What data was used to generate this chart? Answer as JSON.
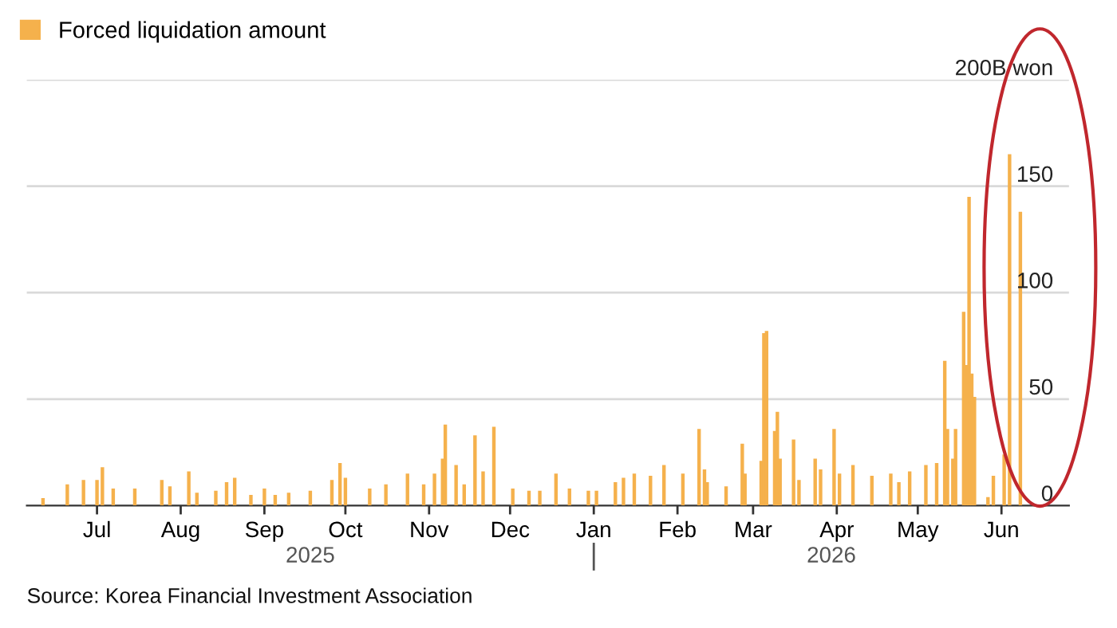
{
  "chart_data": {
    "type": "bar",
    "x": [
      "2025-06-11",
      "2025-06-20",
      "2025-06-26",
      "2025-07-01",
      "2025-07-03",
      "2025-07-07",
      "2025-07-15",
      "2025-07-25",
      "2025-07-28",
      "2025-08-04",
      "2025-08-07",
      "2025-08-14",
      "2025-08-18",
      "2025-08-21",
      "2025-08-27",
      "2025-09-01",
      "2025-09-05",
      "2025-09-10",
      "2025-09-18",
      "2025-09-26",
      "2025-09-29",
      "2025-10-01",
      "2025-10-10",
      "2025-10-16",
      "2025-10-24",
      "2025-10-30",
      "2025-11-03",
      "2025-11-06",
      "2025-11-07",
      "2025-11-11",
      "2025-11-14",
      "2025-11-18",
      "2025-11-21",
      "2025-11-25",
      "2025-12-02",
      "2025-12-08",
      "2025-12-12",
      "2025-12-18",
      "2025-12-23",
      "2025-12-30",
      "2026-01-02",
      "2026-01-09",
      "2026-01-12",
      "2026-01-16",
      "2026-01-22",
      "2026-01-27",
      "2026-02-03",
      "2026-02-09",
      "2026-02-11",
      "2026-02-12",
      "2026-02-19",
      "2026-02-25",
      "2026-02-26",
      "2026-03-04",
      "2026-03-05",
      "2026-03-06",
      "2026-03-09",
      "2026-03-10",
      "2026-03-11",
      "2026-03-16",
      "2026-03-18",
      "2026-03-24",
      "2026-03-26",
      "2026-03-31",
      "2026-04-02",
      "2026-04-07",
      "2026-04-14",
      "2026-04-21",
      "2026-04-24",
      "2026-04-28",
      "2026-05-04",
      "2026-05-08",
      "2026-05-11",
      "2026-05-12",
      "2026-05-14",
      "2026-05-15",
      "2026-05-18",
      "2026-05-19",
      "2026-05-20",
      "2026-05-21",
      "2026-05-22",
      "2026-05-27",
      "2026-05-29",
      "2026-06-02",
      "2026-06-04",
      "2026-06-08"
    ],
    "series": [
      {
        "name": "Forced liquidation amount",
        "color": "#f5b14c",
        "values": [
          3.5,
          10,
          12,
          12,
          18,
          8,
          8,
          12,
          9,
          16,
          6,
          7,
          11,
          13,
          5,
          8,
          5,
          6,
          7,
          12,
          20,
          13,
          8,
          10,
          15,
          10,
          15,
          22,
          38,
          19,
          10,
          33,
          16,
          37,
          8,
          7,
          7,
          15,
          8,
          7,
          7,
          11,
          13,
          15,
          14,
          19,
          15,
          36,
          17,
          11,
          9,
          29,
          15,
          21,
          81,
          82,
          35,
          44,
          22,
          31,
          12,
          22,
          17,
          36,
          15,
          19,
          14,
          15,
          11,
          16,
          19,
          20,
          68,
          36,
          22,
          36,
          91,
          66,
          145,
          62,
          51,
          4,
          14,
          24,
          165,
          138
        ]
      }
    ],
    "xlim": [
      "2025-06-05",
      "2026-06-26"
    ],
    "xticks": [
      {
        "value": "2025-07-01",
        "label": "Jul"
      },
      {
        "value": "2025-08-01",
        "label": "Aug"
      },
      {
        "value": "2025-09-01",
        "label": "Sep"
      },
      {
        "value": "2025-10-01",
        "label": "Oct"
      },
      {
        "value": "2025-11-01",
        "label": "Nov"
      },
      {
        "value": "2025-12-01",
        "label": "Dec"
      },
      {
        "value": "2026-01-01",
        "label": "Jan"
      },
      {
        "value": "2026-02-01",
        "label": "Feb"
      },
      {
        "value": "2026-03-01",
        "label": "Mar"
      },
      {
        "value": "2026-04-01",
        "label": "Apr"
      },
      {
        "value": "2026-05-01",
        "label": "May"
      },
      {
        "value": "2026-06-01",
        "label": "Jun"
      }
    ],
    "ylim": [
      0,
      200
    ],
    "yticks": [
      0,
      50,
      100,
      150,
      {
        "value": 200,
        "label": "200B won"
      }
    ],
    "grid": "y",
    "legend": "top left",
    "annotations": [
      "2025",
      "2026",
      "Source: Korea Financial Investment Association"
    ]
  }
}
